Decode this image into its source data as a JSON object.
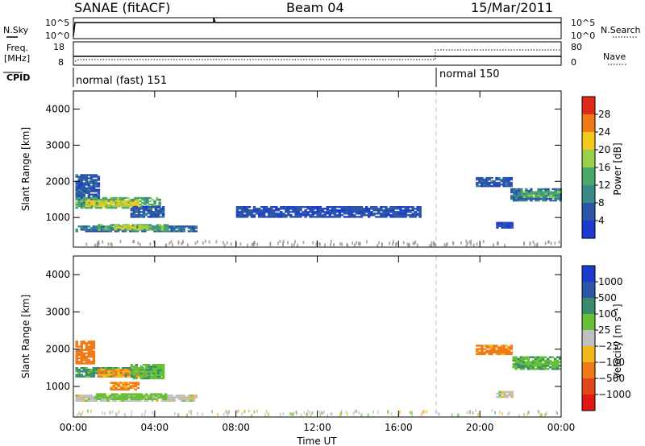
{
  "header": {
    "station": "SANAE (fitACF)",
    "beam": "Beam 04",
    "date": "15/Mar/2011"
  },
  "strip_labels": {
    "nsky": "N.Sky",
    "freq_line1": "Freq.",
    "freq_line2": "[MHz]",
    "cpid": "CPID",
    "nsearch": "N.Search",
    "nave": "Nave",
    "nsky_ticks": [
      "10^5",
      "10^0"
    ],
    "nsearch_ticks": [
      "10^5",
      "10^0"
    ],
    "freq_ticks": [
      "18",
      "8"
    ],
    "nave_ticks": [
      "80",
      "0"
    ]
  },
  "cpid_modes": [
    {
      "label": "normal (fast) 151",
      "start_hour": 0
    },
    {
      "label": "normal 150",
      "start_hour": 18
    }
  ],
  "colors": {
    "power_scale": [
      "#1c3cd0",
      "#2d56a8",
      "#3a8a8c",
      "#4aa86a",
      "#9ad048",
      "#f2c81c",
      "#f07a18",
      "#e02a18"
    ],
    "velocity_scale": [
      "#1c3cd0",
      "#2d56a8",
      "#3a8a6e",
      "#68c038",
      "#c0c0c0",
      "#f2b81c",
      "#f07a18",
      "#e04818",
      "#e01818"
    ]
  },
  "chart_data": [
    {
      "type": "line",
      "name": "top-strips",
      "x": [
        0,
        2,
        4,
        6,
        8,
        10,
        12,
        14,
        16,
        18,
        20,
        22,
        24
      ],
      "nsky_level": "10^5",
      "freq_mhz": [
        11,
        11,
        11,
        11,
        11,
        11,
        11,
        11,
        11,
        11,
        11,
        11,
        11
      ],
      "nave": [
        10,
        10,
        10,
        10,
        10,
        10,
        10,
        10,
        10,
        60,
        60,
        60,
        60
      ]
    },
    {
      "type": "heatmap",
      "name": "power",
      "xlabel": "",
      "ylabel": "Slant Range [km]",
      "xlim": [
        0,
        24
      ],
      "ylim": [
        180,
        4500
      ],
      "yticks": [
        "1000",
        "2000",
        "3000",
        "4000"
      ],
      "colorbar_label": "Power [dB]",
      "colorbar_ticks": [
        "4",
        "8",
        "12",
        "16",
        "20",
        "24",
        "28"
      ],
      "colorbar_range": [
        0,
        32
      ],
      "regions": [
        {
          "t0": 0.1,
          "t1": 1.3,
          "r0": 1300,
          "r1": 2200,
          "value": 6
        },
        {
          "t0": 0.1,
          "t1": 4.2,
          "r0": 1250,
          "r1": 1550,
          "value": 14
        },
        {
          "t0": 0.6,
          "t1": 3.2,
          "r0": 1300,
          "r1": 1450,
          "value": 21
        },
        {
          "t0": 2.8,
          "t1": 4.4,
          "r0": 1000,
          "r1": 1300,
          "value": 6
        },
        {
          "t0": 0.1,
          "t1": 6.1,
          "r0": 600,
          "r1": 760,
          "value": 8
        },
        {
          "t0": 1.2,
          "t1": 4.6,
          "r0": 640,
          "r1": 820,
          "value": 14
        },
        {
          "t0": 2.0,
          "t1": 3.6,
          "r0": 660,
          "r1": 760,
          "value": 19
        },
        {
          "t0": 8.0,
          "t1": 17.0,
          "r0": 1000,
          "r1": 1300,
          "value": 5
        },
        {
          "t0": 19.8,
          "t1": 21.5,
          "r0": 1850,
          "r1": 2100,
          "value": 6
        },
        {
          "t0": 21.5,
          "t1": 24.0,
          "r0": 1450,
          "r1": 1800,
          "value": 8
        },
        {
          "t0": 22.0,
          "t1": 24.0,
          "r0": 1550,
          "r1": 1700,
          "value": 14
        },
        {
          "t0": 20.8,
          "t1": 21.6,
          "r0": 700,
          "r1": 850,
          "value": 5
        }
      ]
    },
    {
      "type": "heatmap",
      "name": "velocity",
      "xlabel": "Time UT",
      "ylabel": "Slant Range [km]",
      "xlim": [
        0,
        24
      ],
      "ylim": [
        180,
        4500
      ],
      "yticks": [
        "1000",
        "2000",
        "3000",
        "4000"
      ],
      "xticks": [
        "00:00",
        "04:00",
        "08:00",
        "12:00",
        "16:00",
        "20:00",
        "00:00"
      ],
      "colorbar_label": "Velocity [m s⁻¹]",
      "colorbar_ticks": [
        "1000",
        "500",
        "100",
        "25",
        "−25",
        "−100",
        "−500",
        "−1000"
      ],
      "regions": [
        {
          "t0": 0.1,
          "t1": 1.0,
          "r0": 1600,
          "r1": 2200,
          "value": -300
        },
        {
          "t0": 0.1,
          "t1": 4.2,
          "r0": 1250,
          "r1": 1500,
          "value": 150
        },
        {
          "t0": 1.2,
          "t1": 3.4,
          "r0": 1250,
          "r1": 1450,
          "value": -100
        },
        {
          "t0": 2.8,
          "t1": 4.4,
          "r0": 1200,
          "r1": 1600,
          "value": 80
        },
        {
          "t0": 1.8,
          "t1": 3.2,
          "r0": 900,
          "r1": 1100,
          "value": -150
        },
        {
          "t0": 0.1,
          "t1": 6.1,
          "r0": 600,
          "r1": 760,
          "value": 0
        },
        {
          "t0": 1.0,
          "t1": 4.5,
          "r0": 640,
          "r1": 820,
          "value": 60
        },
        {
          "t0": 19.8,
          "t1": 21.6,
          "r0": 1850,
          "r1": 2100,
          "value": -150
        },
        {
          "t0": 21.6,
          "t1": 24.0,
          "r0": 1450,
          "r1": 1800,
          "value": 80
        },
        {
          "t0": 20.8,
          "t1": 21.6,
          "r0": 700,
          "r1": 850,
          "value": 0
        }
      ]
    }
  ]
}
